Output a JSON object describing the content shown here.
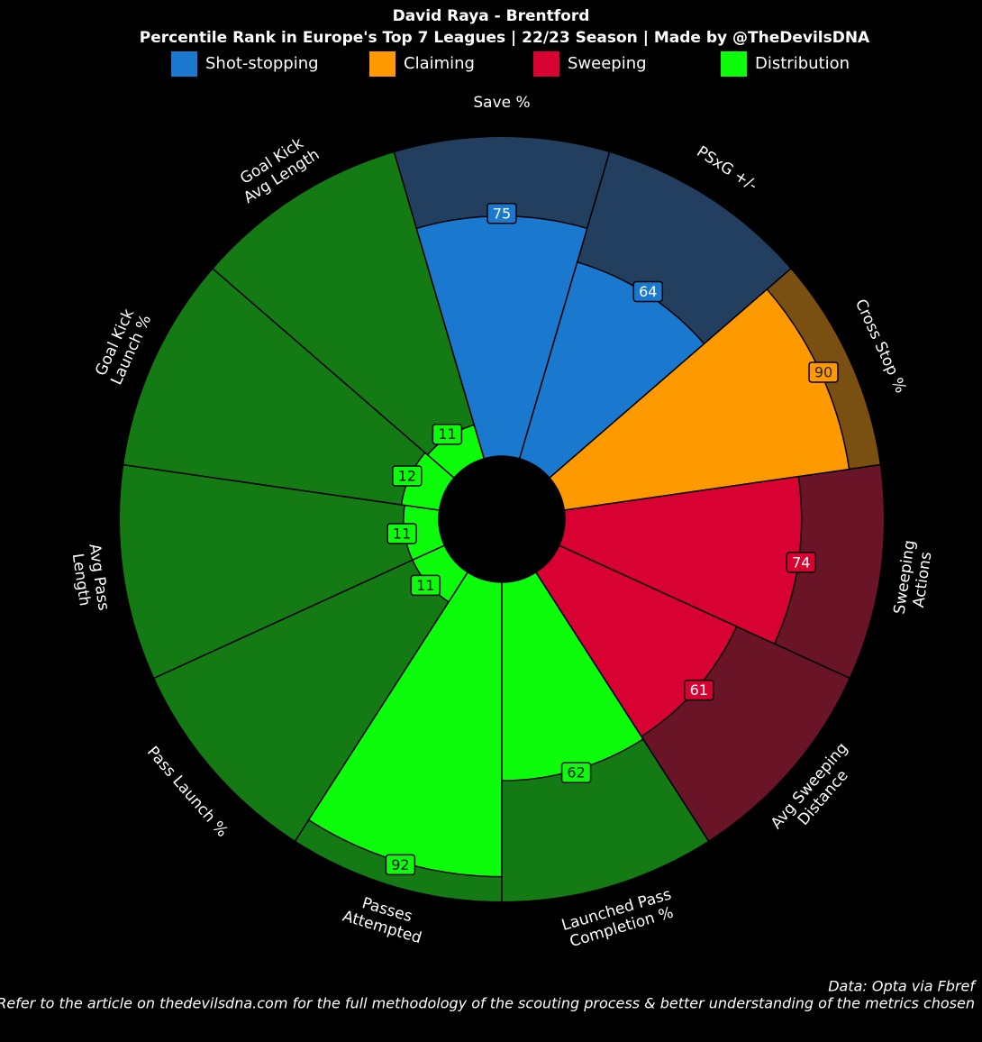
{
  "chart_data": {
    "type": "pizza",
    "title": "David Raya - Brentford",
    "subtitle": "Percentile Rank in Europe's Top 7 Leagues | 22/23 Season | Made by @TheDevilsDNA",
    "groups": [
      {
        "name": "Shot-stopping",
        "color": "#1a78cf",
        "background": "#223f60",
        "text_color": "#ffffff"
      },
      {
        "name": "Claiming",
        "color": "#ff9900",
        "background": "#7a4f12",
        "text_color": "#222222"
      },
      {
        "name": "Sweeping",
        "color": "#d70232",
        "background": "#6a1428",
        "text_color": "#ffffff"
      },
      {
        "name": "Distribution",
        "color": "#0cfc0c",
        "background": "#147a14",
        "text_color": "#111111"
      }
    ],
    "categories": [
      [
        "Save %"
      ],
      [
        "PSxG +/-"
      ],
      [
        "Cross Stop %"
      ],
      [
        "Sweeping",
        "Actions"
      ],
      [
        "Avg Sweeping",
        "Distance"
      ],
      [
        "Launched Pass",
        "Completion %"
      ],
      [
        "Passes",
        "Attempted"
      ],
      [
        "Pass Launch %"
      ],
      [
        "Avg Pass",
        "Length"
      ],
      [
        "Goal Kick",
        "Launch %"
      ],
      [
        "Goal Kick",
        "Avg Length"
      ]
    ],
    "slice_groups": [
      0,
      0,
      1,
      2,
      2,
      3,
      3,
      3,
      3,
      3,
      3
    ],
    "values": [
      75,
      64,
      90,
      74,
      61,
      62,
      92,
      11,
      11,
      12,
      11
    ],
    "ylim": [
      0,
      100
    ],
    "source": "Data: Opta via Fbref",
    "note": "Refer to the article on thedevilsdna.com for the full methodology of the scouting process & better understanding of the metrics chosen"
  }
}
